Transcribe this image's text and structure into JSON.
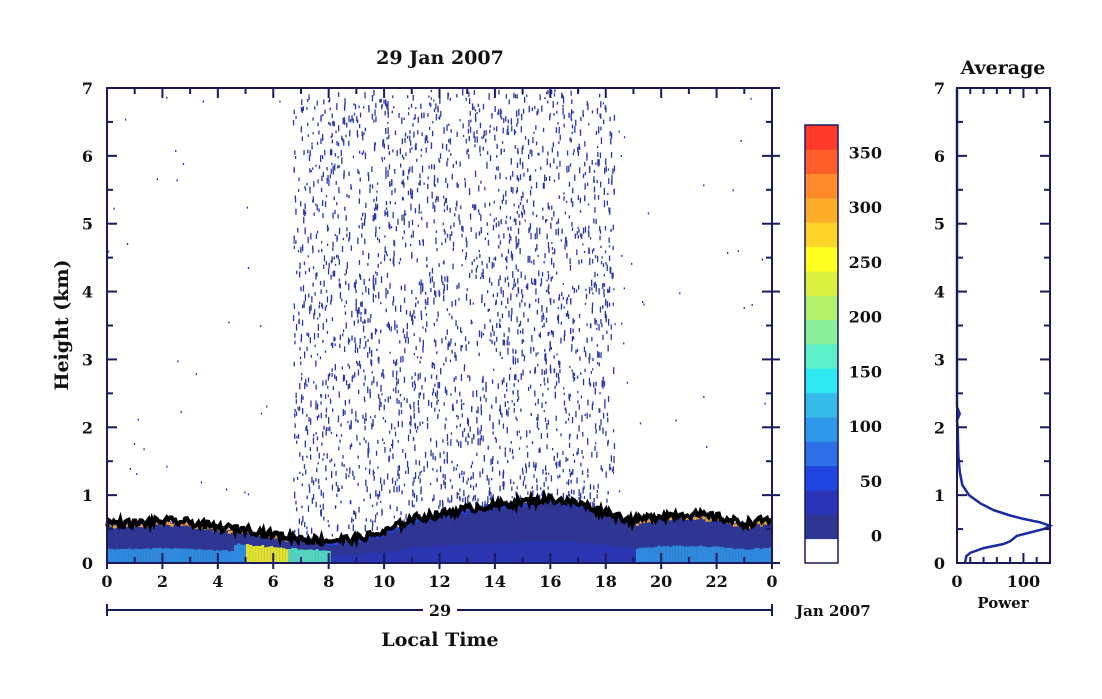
{
  "colors": {
    "ink": "#111111",
    "frame": "#1a1a5e",
    "ticks": "#1a1a5e",
    "profile": "#1a2aa0",
    "noise": "#2a36a8",
    "boundary": "#000000",
    "colorbar": [
      "#ffffff",
      "#2e3592",
      "#2b35b8",
      "#2045e0",
      "#2f6fe8",
      "#2f98ea",
      "#36bce9",
      "#2ee9f2",
      "#5bf0c8",
      "#8af09a",
      "#b3f06a",
      "#dcf040",
      "#ffff20",
      "#ffd42a",
      "#ffae2a",
      "#ff8a2a",
      "#ff5e2a",
      "#ff3a2a"
    ]
  },
  "chart_data": [
    {
      "type": "heatmap",
      "title": "29 Jan 2007",
      "xlabel": "Local Time",
      "ylabel": "Height (km)",
      "x_ticks": [
        "0",
        "2",
        "4",
        "6",
        "8",
        "10",
        "12",
        "14",
        "16",
        "18",
        "20",
        "22",
        "0"
      ],
      "x_range": [
        0,
        24
      ],
      "y_ticks": [
        "0",
        "1",
        "2",
        "3",
        "4",
        "5",
        "6",
        "7"
      ],
      "y_range": [
        0,
        7
      ],
      "date_day": "29",
      "date_month_year": "Jan 2007",
      "noise_band_hours": [
        6.7,
        18.3
      ],
      "boundary_layer_top_km": [
        [
          0,
          0.6
        ],
        [
          1,
          0.58
        ],
        [
          2,
          0.62
        ],
        [
          3,
          0.6
        ],
        [
          4,
          0.52
        ],
        [
          5,
          0.5
        ],
        [
          6,
          0.42
        ],
        [
          7,
          0.36
        ],
        [
          8,
          0.33
        ],
        [
          9,
          0.36
        ],
        [
          10,
          0.45
        ],
        [
          11,
          0.65
        ],
        [
          12,
          0.72
        ],
        [
          13,
          0.8
        ],
        [
          14,
          0.85
        ],
        [
          15,
          0.9
        ],
        [
          16,
          0.95
        ],
        [
          17,
          0.88
        ],
        [
          18,
          0.75
        ],
        [
          19,
          0.62
        ],
        [
          20,
          0.7
        ],
        [
          21,
          0.72
        ],
        [
          22,
          0.68
        ],
        [
          23,
          0.58
        ],
        [
          24,
          0.65
        ]
      ],
      "colorbar": {
        "tick_labels": [
          "0",
          "50",
          "100",
          "150",
          "200",
          "250",
          "300",
          "350"
        ],
        "tick_values": [
          0,
          50,
          100,
          150,
          200,
          250,
          300,
          350
        ],
        "range": [
          -25,
          375
        ]
      }
    },
    {
      "type": "line",
      "title": "Average",
      "xlabel": "Power",
      "ylabel": "",
      "x_ticks": [
        "0",
        "100"
      ],
      "xlim": [
        0,
        140
      ],
      "y_ticks": [
        "0",
        "1",
        "2",
        "3",
        "4",
        "5",
        "6",
        "7"
      ],
      "ylim": [
        0,
        7
      ],
      "series": [
        {
          "name": "",
          "points": [
            [
              12,
              0.0
            ],
            [
              14,
              0.1
            ],
            [
              20,
              0.15
            ],
            [
              40,
              0.22
            ],
            [
              70,
              0.28
            ],
            [
              80,
              0.32
            ],
            [
              90,
              0.4
            ],
            [
              130,
              0.5
            ],
            [
              140,
              0.55
            ],
            [
              125,
              0.6
            ],
            [
              100,
              0.65
            ],
            [
              80,
              0.7
            ],
            [
              55,
              0.78
            ],
            [
              35,
              0.88
            ],
            [
              18,
              1.0
            ],
            [
              8,
              1.15
            ],
            [
              4,
              1.35
            ],
            [
              2,
              1.6
            ],
            [
              1,
              2.0
            ],
            [
              0,
              2.1
            ],
            [
              4,
              2.2
            ],
            [
              0,
              2.3
            ],
            [
              0,
              3.0
            ],
            [
              0,
              5.0
            ],
            [
              0,
              7.0
            ]
          ]
        }
      ]
    }
  ]
}
